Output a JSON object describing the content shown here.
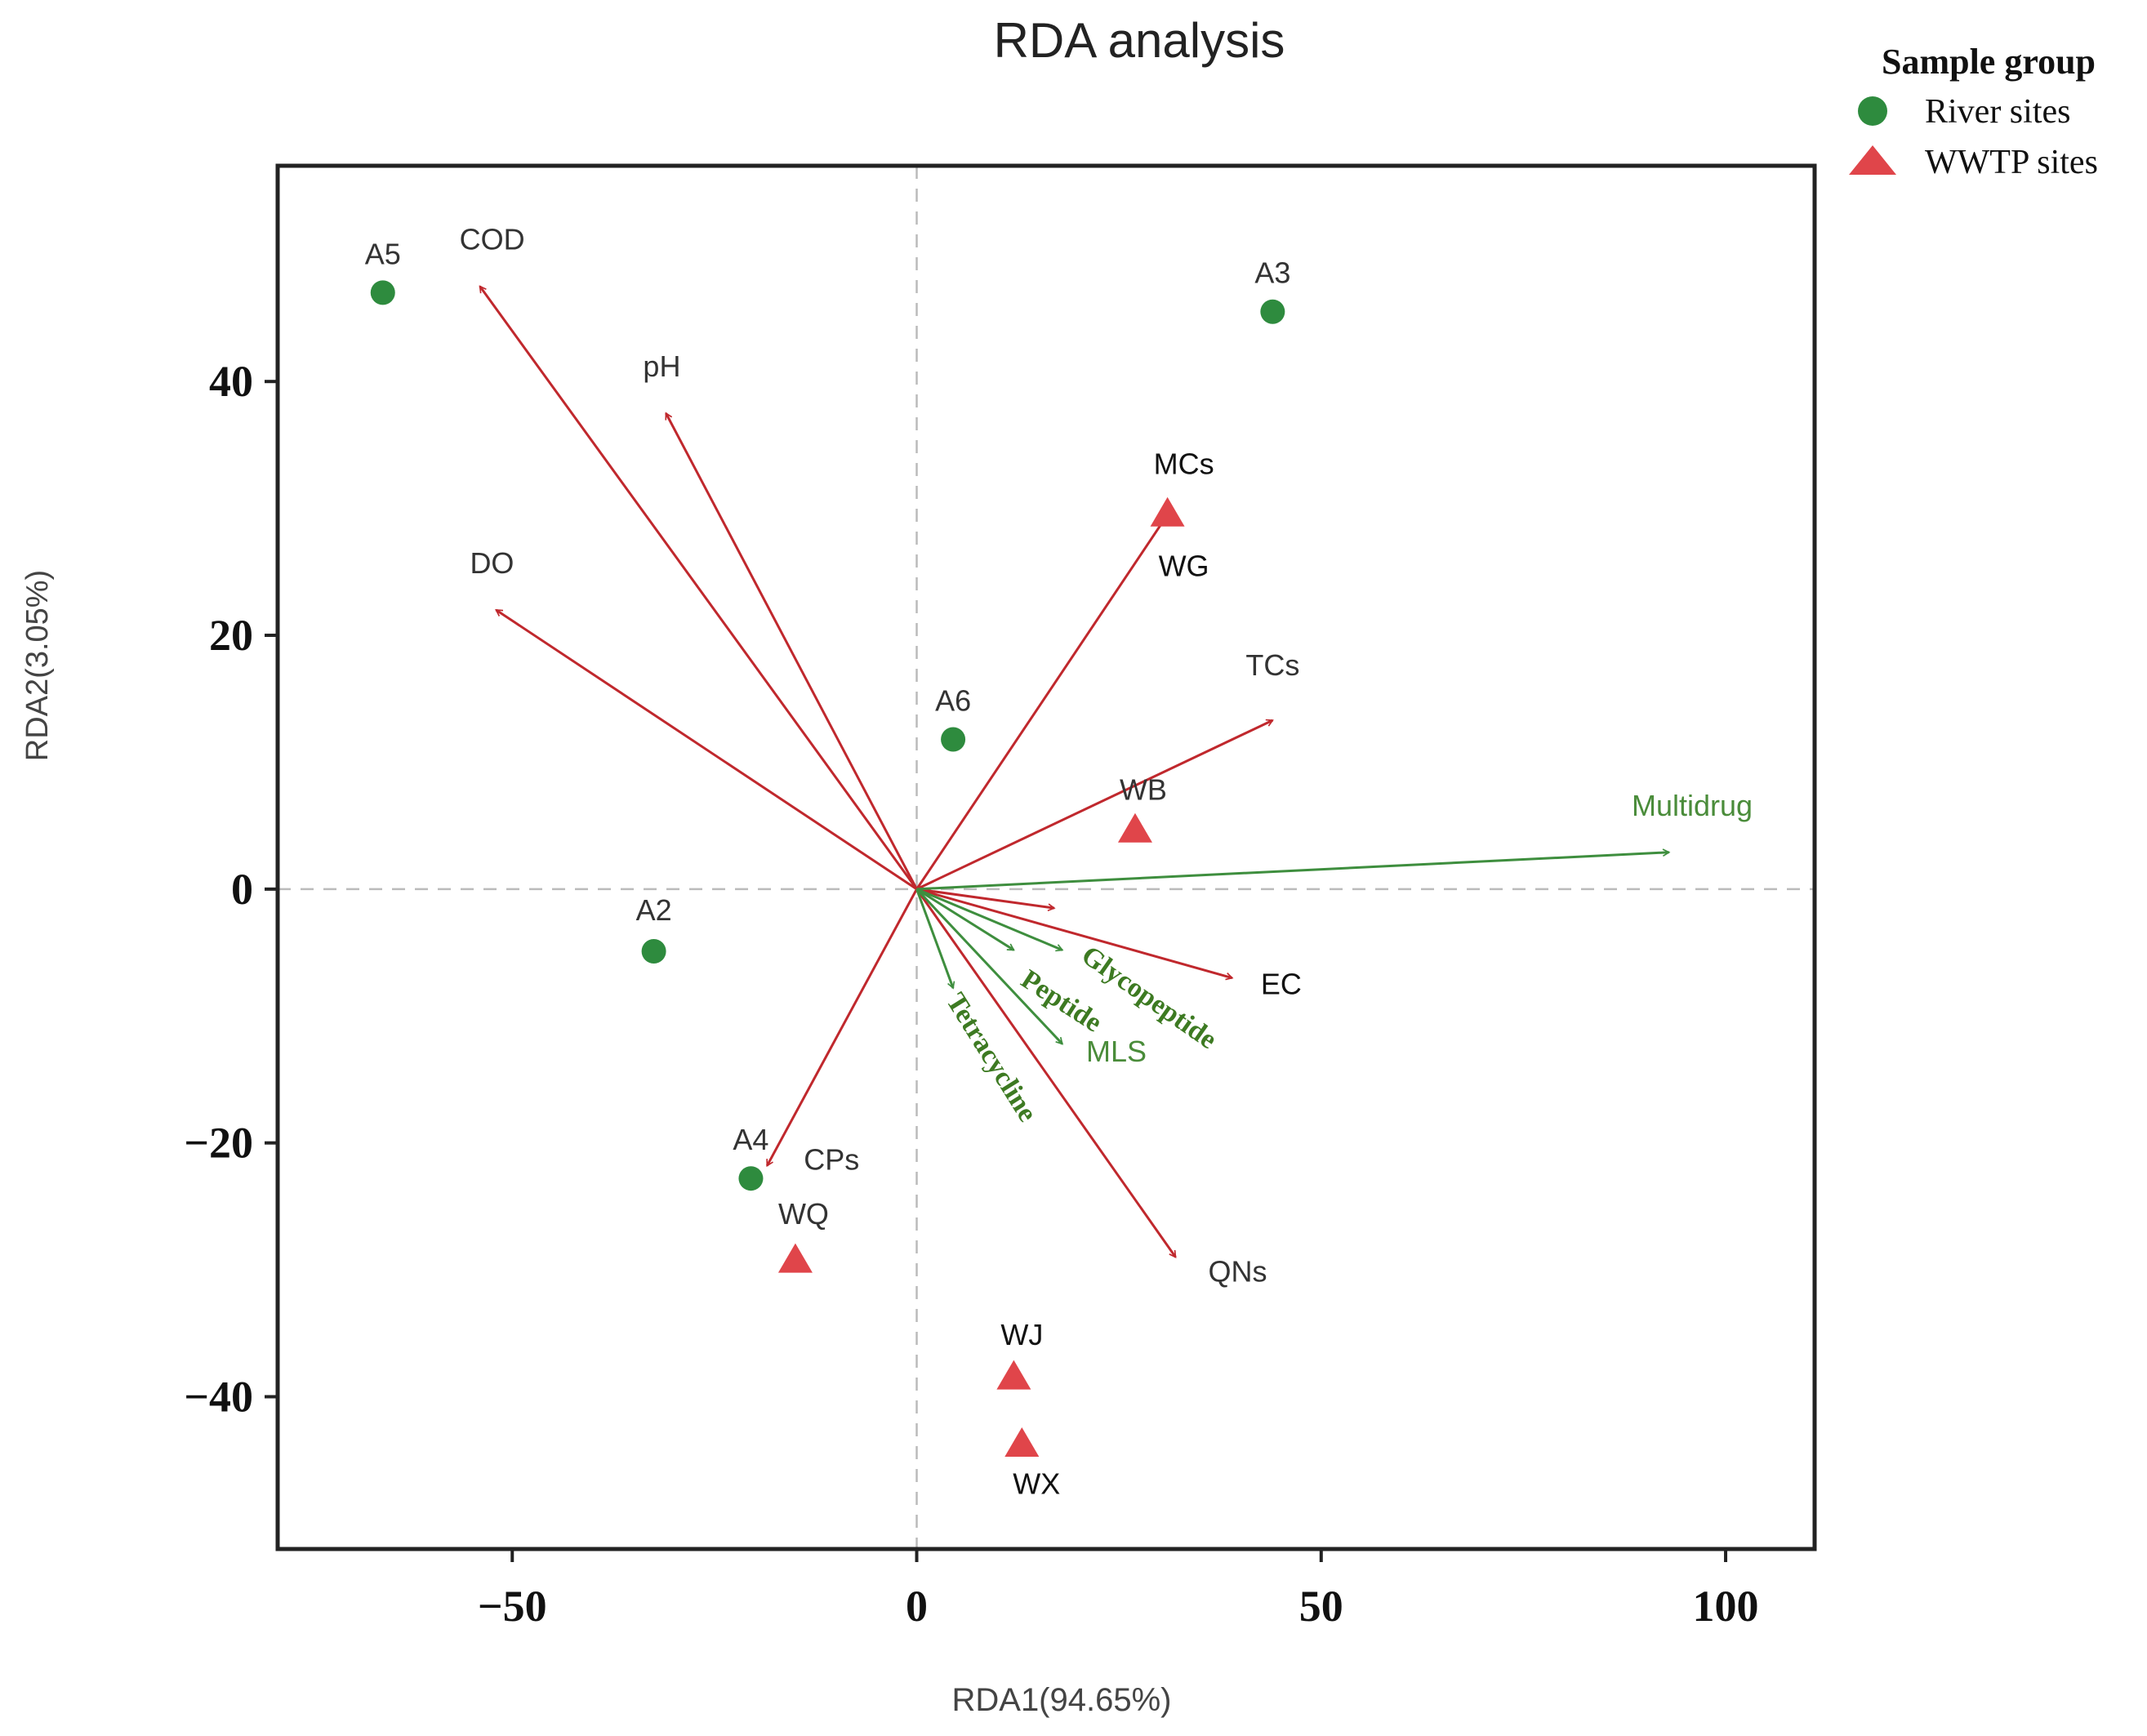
{
  "chart_data": {
    "type": "scatter",
    "title": "RDA analysis",
    "xlabel": "RDA1(94.65%)",
    "ylabel": "RDA2(3.05%)",
    "xlim": [
      -79,
      111
    ],
    "ylim": [
      -52,
      57
    ],
    "xticks": [
      -50,
      0,
      50,
      100
    ],
    "xtick_labels": [
      "−50",
      "0",
      "50",
      "100"
    ],
    "yticks": [
      -40,
      -20,
      0,
      20,
      40
    ],
    "ytick_labels": [
      "−40",
      "−20",
      "0",
      "20",
      "40"
    ],
    "grid": false,
    "zero_lines": true,
    "colors": {
      "river": "#2e8b3e",
      "wwtp": "#e0454a",
      "env_arrow": "#c0282d",
      "arg_arrow": "#3e8e3e",
      "arg_label": "#4a8c3a",
      "arg_label_dark": "#3d7a22"
    },
    "legend": {
      "title": "Sample group",
      "position": "top-right",
      "entries": [
        {
          "label": "River sites",
          "marker": "circle",
          "color": "#2e8b3e"
        },
        {
          "label": "WWTP sites",
          "marker": "triangle",
          "color": "#e0454a"
        }
      ]
    },
    "series": [
      {
        "name": "River sites",
        "marker": "circle",
        "points": [
          {
            "label": "A5",
            "x": -66,
            "y": 47.0
          },
          {
            "label": "A3",
            "x": 44,
            "y": 45.5
          },
          {
            "label": "A6",
            "x": 4.5,
            "y": 11.8
          },
          {
            "label": "A2",
            "x": -32.5,
            "y": -4.9
          },
          {
            "label": "A4",
            "x": -20.5,
            "y": -22.8
          }
        ]
      },
      {
        "name": "WWTP sites",
        "marker": "triangle",
        "points": [
          {
            "label": "WG",
            "x": 31,
            "y": 29.5
          },
          {
            "label": "WB",
            "x": 27,
            "y": 4.6
          },
          {
            "label": "WQ",
            "x": -15,
            "y": -29.3
          },
          {
            "label": "WJ",
            "x": 12,
            "y": -38.5
          },
          {
            "label": "WX",
            "x": 13,
            "y": -43.8
          }
        ]
      }
    ],
    "env_arrows": [
      {
        "label": "COD",
        "x": -54,
        "y": 47.5
      },
      {
        "label": "pH",
        "x": -31,
        "y": 37.5
      },
      {
        "label": "DO",
        "x": -52,
        "y": 22.0
      },
      {
        "label": "MCs",
        "x": 31,
        "y": 29.5
      },
      {
        "label": "TCs",
        "x": 44,
        "y": 13.3
      },
      {
        "label": "",
        "x": 17,
        "y": -1.5
      },
      {
        "label": "EC",
        "x": 39,
        "y": -7.0
      },
      {
        "label": "QNs",
        "x": 32,
        "y": -29.0
      },
      {
        "label": "CPs",
        "x": -18.5,
        "y": -21.8
      }
    ],
    "arg_arrows": [
      {
        "label": "Multidrug",
        "x": 93,
        "y": 2.9
      },
      {
        "label": "Glycopeptide",
        "x": 18,
        "y": -4.8
      },
      {
        "label": "Peptide",
        "x": 12,
        "y": -4.8
      },
      {
        "label": "MLS",
        "x": 18,
        "y": -12.2
      },
      {
        "label": "Tetracycline",
        "x": 4.5,
        "y": -7.8
      }
    ]
  }
}
